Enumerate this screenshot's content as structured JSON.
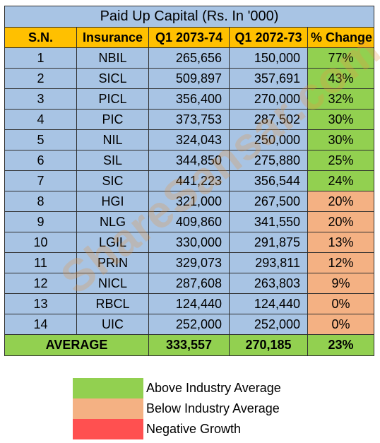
{
  "table": {
    "title": "Paid Up Capital (Rs. In '000)",
    "headers": [
      "S.N.",
      "Insurance",
      "Q1 2073-74",
      "Q1 2072-73",
      "% Change"
    ],
    "rows": [
      {
        "sn": "1",
        "name": "NBIL",
        "q1_2073": "265,656",
        "q1_2072": "150,000",
        "change": "77%",
        "status": "above"
      },
      {
        "sn": "2",
        "name": "SICL",
        "q1_2073": "509,897",
        "q1_2072": "357,691",
        "change": "43%",
        "status": "above"
      },
      {
        "sn": "3",
        "name": "PICL",
        "q1_2073": "356,400",
        "q1_2072": "270,000",
        "change": "32%",
        "status": "above"
      },
      {
        "sn": "4",
        "name": "PIC",
        "q1_2073": "373,753",
        "q1_2072": "287,502",
        "change": "30%",
        "status": "above"
      },
      {
        "sn": "5",
        "name": "NIL",
        "q1_2073": "324,043",
        "q1_2072": "250,000",
        "change": "30%",
        "status": "above"
      },
      {
        "sn": "6",
        "name": "SIL",
        "q1_2073": "344,850",
        "q1_2072": "275,880",
        "change": "25%",
        "status": "above"
      },
      {
        "sn": "7",
        "name": "SIC",
        "q1_2073": "441,223",
        "q1_2072": "356,544",
        "change": "24%",
        "status": "above"
      },
      {
        "sn": "8",
        "name": "HGI",
        "q1_2073": "321,000",
        "q1_2072": "267,500",
        "change": "20%",
        "status": "below"
      },
      {
        "sn": "9",
        "name": "NLG",
        "q1_2073": "409,860",
        "q1_2072": "341,550",
        "change": "20%",
        "status": "below"
      },
      {
        "sn": "10",
        "name": "LGIL",
        "q1_2073": "330,000",
        "q1_2072": "291,875",
        "change": "13%",
        "status": "below"
      },
      {
        "sn": "11",
        "name": "PRIN",
        "q1_2073": "329,073",
        "q1_2072": "293,811",
        "change": "12%",
        "status": "below"
      },
      {
        "sn": "12",
        "name": "NICL",
        "q1_2073": "287,608",
        "q1_2072": "263,803",
        "change": "9%",
        "status": "below"
      },
      {
        "sn": "13",
        "name": "RBCL",
        "q1_2073": "124,440",
        "q1_2072": "124,440",
        "change": "0%",
        "status": "below"
      },
      {
        "sn": "14",
        "name": "UIC",
        "q1_2073": "252,000",
        "q1_2072": "252,000",
        "change": "0%",
        "status": "below"
      }
    ],
    "average": {
      "label": "AVERAGE",
      "q1_2073": "333,557",
      "q1_2072": "270,185",
      "change": "23%"
    }
  },
  "legend": [
    {
      "label": "Above Industry Average",
      "color": "#92d050"
    },
    {
      "label": "Below Industry Average",
      "color": "#f4b183"
    },
    {
      "label": "Negative Growth",
      "color": "#ff5050"
    }
  ],
  "watermark": "ShareSansar.com",
  "colors": {
    "title_bg": "#a8c4e4",
    "header_bg": "#ffc000",
    "above": "#92d050",
    "below": "#f4b183",
    "negative": "#ff5050"
  }
}
